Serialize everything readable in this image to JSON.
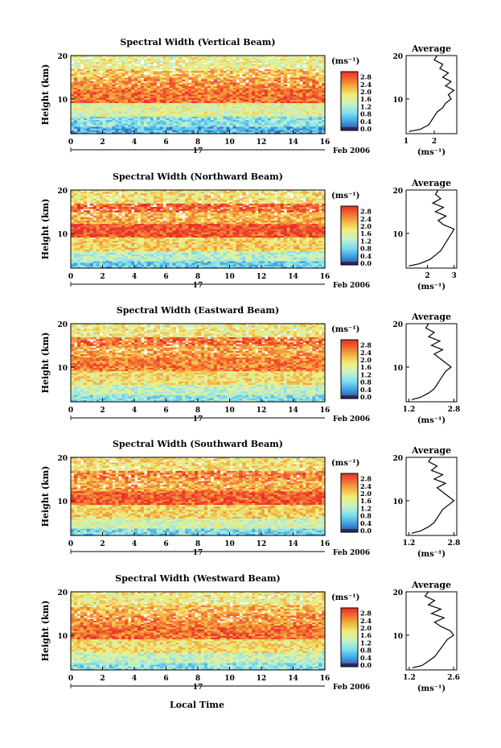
{
  "figure": {
    "xlabel": "Local Time",
    "colorbar_unit": "(ms⁻¹)",
    "average_title": "Average",
    "average_xlabel": "(ms⁻¹)",
    "date_day": "17",
    "date_month": "Feb 2006"
  },
  "chart_data": [
    {
      "type": "heatmap",
      "title": "Spectral Width (Vertical Beam)",
      "ylabel": "Height (km)",
      "x_ticks": [
        0,
        2,
        4,
        6,
        8,
        10,
        12,
        14,
        16
      ],
      "x_tick_labels": [
        "0",
        "2",
        "4",
        "6",
        "8",
        "10",
        "12",
        "14",
        "16"
      ],
      "xlim": [
        0,
        16
      ],
      "y_ticks": [
        10,
        20
      ],
      "ylim": [
        2,
        20
      ],
      "colorbar": {
        "ticks": [
          "2.8",
          "2.4",
          "2.0",
          "1.6",
          "1.2",
          "0.8",
          "0.4",
          "0.0"
        ],
        "range": [
          0.0,
          3.0
        ]
      },
      "bands": [
        {
          "from": 2,
          "to": 3.5,
          "value": 0.6
        },
        {
          "from": 3.5,
          "to": 6,
          "value": 1.0
        },
        {
          "from": 6,
          "to": 9,
          "value": 1.6
        },
        {
          "from": 9,
          "to": 12,
          "value": 2.6
        },
        {
          "from": 12,
          "to": 15,
          "value": 2.4
        },
        {
          "from": 15,
          "to": 17,
          "value": 2.1
        },
        {
          "from": 17,
          "to": 20,
          "value": 1.7
        }
      ],
      "average_profile": {
        "xlim": [
          1,
          2.8
        ],
        "x_ticks": [
          1,
          2
        ],
        "x_tick_labels": [
          "1",
          "2"
        ],
        "heights": [
          2.5,
          3,
          4,
          5,
          6,
          7,
          8,
          9,
          10,
          11,
          12,
          13,
          14,
          15,
          16,
          17,
          18,
          19,
          20
        ],
        "values": [
          1.1,
          1.5,
          1.8,
          1.9,
          2.0,
          2.1,
          2.3,
          2.4,
          2.6,
          2.5,
          2.7,
          2.4,
          2.6,
          2.3,
          2.5,
          2.2,
          2.3,
          2.0,
          2.1
        ]
      }
    },
    {
      "type": "heatmap",
      "title": "Spectral Width (Northward Beam)",
      "ylabel": "Height (km)",
      "x_ticks": [
        0,
        2,
        4,
        6,
        8,
        10,
        12,
        14,
        16
      ],
      "x_tick_labels": [
        "0",
        "2",
        "4",
        "6",
        "8",
        "10",
        "12",
        "14",
        "16"
      ],
      "xlim": [
        0,
        16
      ],
      "y_ticks": [
        10,
        20
      ],
      "ylim": [
        2,
        20
      ],
      "colorbar": {
        "ticks": [
          "2.8",
          "2.4",
          "2.0",
          "1.6",
          "1.2",
          "0.8",
          "0.4",
          "0.0"
        ],
        "range": [
          0.0,
          3.0
        ]
      },
      "bands": [
        {
          "from": 2,
          "to": 3.5,
          "value": 0.8
        },
        {
          "from": 3.5,
          "to": 6,
          "value": 1.3
        },
        {
          "from": 6,
          "to": 9,
          "value": 2.0
        },
        {
          "from": 9,
          "to": 12,
          "value": 2.8
        },
        {
          "from": 12,
          "to": 15,
          "value": 2.2
        },
        {
          "from": 15,
          "to": 17,
          "value": 2.7
        },
        {
          "from": 17,
          "to": 20,
          "value": 1.9
        }
      ],
      "average_profile": {
        "xlim": [
          1.2,
          3.1
        ],
        "x_ticks": [
          2,
          3
        ],
        "x_tick_labels": [
          "2",
          "3"
        ],
        "heights": [
          2.5,
          3,
          4,
          5,
          6,
          7,
          8,
          9,
          10,
          11,
          12,
          13,
          14,
          15,
          16,
          17,
          18,
          19,
          20
        ],
        "values": [
          1.3,
          1.7,
          2.1,
          2.3,
          2.5,
          2.6,
          2.7,
          2.8,
          2.9,
          3.0,
          2.6,
          2.4,
          2.7,
          2.3,
          2.6,
          2.2,
          2.5,
          2.3,
          2.4
        ]
      }
    },
    {
      "type": "heatmap",
      "title": "Spectral Width (Eastward Beam)",
      "ylabel": "Height (km)",
      "x_ticks": [
        0,
        2,
        4,
        6,
        8,
        10,
        12,
        14,
        16
      ],
      "x_tick_labels": [
        "0",
        "2",
        "4",
        "6",
        "8",
        "10",
        "12",
        "14",
        "16"
      ],
      "xlim": [
        0,
        16
      ],
      "y_ticks": [
        10,
        20
      ],
      "ylim": [
        2,
        20
      ],
      "colorbar": {
        "ticks": [
          "2.8",
          "2.4",
          "2.0",
          "1.6",
          "1.2",
          "0.8",
          "0.4",
          "0.0"
        ],
        "range": [
          0.0,
          3.0
        ]
      },
      "bands": [
        {
          "from": 2,
          "to": 3.5,
          "value": 1.0
        },
        {
          "from": 3.5,
          "to": 6,
          "value": 1.4
        },
        {
          "from": 6,
          "to": 9,
          "value": 1.9
        },
        {
          "from": 9,
          "to": 12,
          "value": 2.5
        },
        {
          "from": 12,
          "to": 15,
          "value": 2.3
        },
        {
          "from": 15,
          "to": 17,
          "value": 2.6
        },
        {
          "from": 17,
          "to": 20,
          "value": 1.8
        }
      ],
      "average_profile": {
        "xlim": [
          1.1,
          2.9
        ],
        "x_ticks": [
          1.2,
          2.8
        ],
        "x_tick_labels": [
          "1.2",
          "2.8"
        ],
        "heights": [
          2.5,
          3,
          4,
          5,
          6,
          7,
          8,
          9,
          10,
          11,
          12,
          13,
          14,
          15,
          16,
          17,
          18,
          19,
          20
        ],
        "values": [
          1.3,
          1.6,
          1.9,
          2.1,
          2.2,
          2.3,
          2.4,
          2.5,
          2.7,
          2.5,
          2.3,
          2.1,
          2.4,
          2.0,
          2.3,
          1.9,
          2.1,
          1.8,
          1.9
        ]
      }
    },
    {
      "type": "heatmap",
      "title": "Spectral Width (Southward Beam)",
      "ylabel": "Height (km)",
      "x_ticks": [
        0,
        2,
        4,
        6,
        8,
        10,
        12,
        14,
        16
      ],
      "x_tick_labels": [
        "0",
        "2",
        "4",
        "6",
        "8",
        "10",
        "12",
        "14",
        "16"
      ],
      "xlim": [
        0,
        16
      ],
      "y_ticks": [
        10,
        20
      ],
      "ylim": [
        2,
        20
      ],
      "colorbar": {
        "ticks": [
          "2.8",
          "2.4",
          "2.0",
          "1.6",
          "1.2",
          "0.8",
          "0.4",
          "0.0"
        ],
        "range": [
          0.0,
          3.0
        ]
      },
      "bands": [
        {
          "from": 2,
          "to": 3.5,
          "value": 0.9
        },
        {
          "from": 3.5,
          "to": 6,
          "value": 1.5
        },
        {
          "from": 6,
          "to": 9,
          "value": 2.0
        },
        {
          "from": 9,
          "to": 12,
          "value": 2.7
        },
        {
          "from": 12,
          "to": 15,
          "value": 2.3
        },
        {
          "from": 15,
          "to": 17,
          "value": 2.5
        },
        {
          "from": 17,
          "to": 20,
          "value": 1.9
        }
      ],
      "average_profile": {
        "xlim": [
          1.1,
          2.9
        ],
        "x_ticks": [
          1.2,
          2.8
        ],
        "x_tick_labels": [
          "1.2",
          "2.8"
        ],
        "heights": [
          2.5,
          3,
          4,
          5,
          6,
          7,
          8,
          9,
          10,
          11,
          12,
          13,
          14,
          15,
          16,
          17,
          18,
          19,
          20
        ],
        "values": [
          1.3,
          1.6,
          1.9,
          2.1,
          2.2,
          2.3,
          2.4,
          2.6,
          2.8,
          2.6,
          2.4,
          2.2,
          2.5,
          2.1,
          2.4,
          2.0,
          2.2,
          1.9,
          2.0
        ]
      }
    },
    {
      "type": "heatmap",
      "title": "Spectral Width (Westward Beam)",
      "ylabel": "Height (km)",
      "x_ticks": [
        0,
        2,
        4,
        6,
        8,
        10,
        12,
        14,
        16
      ],
      "x_tick_labels": [
        "0",
        "2",
        "4",
        "6",
        "8",
        "10",
        "12",
        "14",
        "16"
      ],
      "xlim": [
        0,
        16
      ],
      "y_ticks": [
        10,
        20
      ],
      "ylim": [
        2,
        20
      ],
      "colorbar": {
        "ticks": [
          "2.8",
          "2.4",
          "2.0",
          "1.6",
          "1.2",
          "0.8",
          "0.4",
          "0.0"
        ],
        "range": [
          0.0,
          3.0
        ]
      },
      "bands": [
        {
          "from": 2,
          "to": 3.5,
          "value": 1.0
        },
        {
          "from": 3.5,
          "to": 6,
          "value": 1.4
        },
        {
          "from": 6,
          "to": 9,
          "value": 1.9
        },
        {
          "from": 9,
          "to": 12,
          "value": 2.6
        },
        {
          "from": 12,
          "to": 15,
          "value": 2.4
        },
        {
          "from": 15,
          "to": 17,
          "value": 2.2
        },
        {
          "from": 17,
          "to": 20,
          "value": 1.8
        }
      ],
      "average_profile": {
        "xlim": [
          1.1,
          2.7
        ],
        "x_ticks": [
          1.2,
          2.6
        ],
        "x_tick_labels": [
          "1.2",
          "2.6"
        ],
        "heights": [
          2.5,
          3,
          4,
          5,
          6,
          7,
          8,
          9,
          10,
          11,
          12,
          13,
          14,
          15,
          16,
          17,
          18,
          19,
          20
        ],
        "values": [
          1.3,
          1.6,
          1.8,
          2.0,
          2.1,
          2.2,
          2.3,
          2.4,
          2.6,
          2.5,
          2.2,
          2.0,
          2.3,
          1.9,
          2.2,
          1.8,
          2.0,
          1.7,
          1.8
        ]
      }
    }
  ]
}
